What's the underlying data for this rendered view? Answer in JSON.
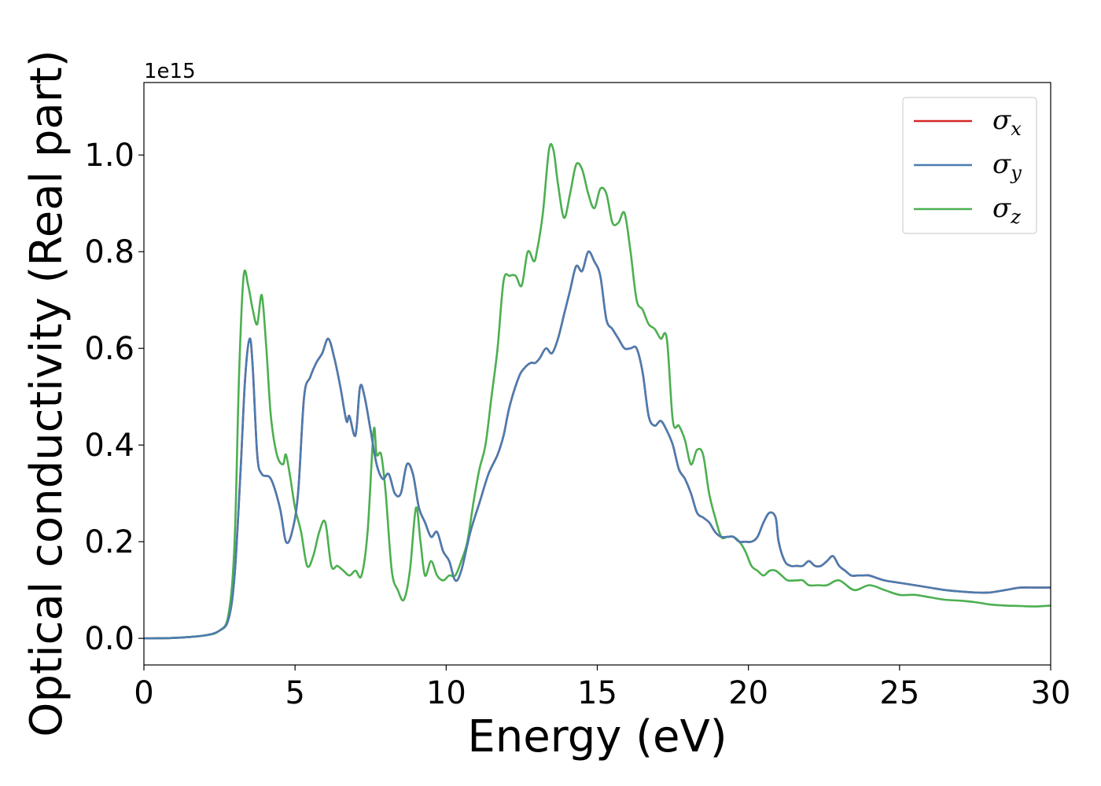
{
  "chart_data": {
    "type": "line",
    "xlabel": "Energy (eV)",
    "ylabel": "Optical conductivity (Real part)",
    "y_offset_text": "1e15",
    "xlim": [
      0,
      30
    ],
    "ylim": [
      -0.055,
      1.15
    ],
    "x_ticks": [
      "0",
      "5",
      "10",
      "15",
      "20",
      "25",
      "30"
    ],
    "x_tick_values": [
      0,
      5,
      10,
      15,
      20,
      25,
      30
    ],
    "y_ticks": [
      "0.0",
      "0.2",
      "0.4",
      "0.6",
      "0.8",
      "1.0"
    ],
    "y_tick_values": [
      0.0,
      0.2,
      0.4,
      0.6,
      0.8,
      1.0
    ],
    "grid": false,
    "legend_position": "top-right",
    "colors": {
      "sigma_x": "#d62728",
      "sigma_y": "#4a7cb0",
      "sigma_z": "#4caf50"
    },
    "legend": [
      {
        "symbol": "σ",
        "sub": "x",
        "color": "#d62728"
      },
      {
        "symbol": "σ",
        "sub": "y",
        "color": "#4a7cb0"
      },
      {
        "symbol": "σ",
        "sub": "z",
        "color": "#4caf50"
      }
    ],
    "series": [
      {
        "name": "σx",
        "color": "#d62728",
        "x": [
          0,
          1,
          2,
          2.5,
          2.8,
          3.0,
          3.2,
          3.35,
          3.5,
          3.6,
          3.75,
          3.9,
          4.2,
          4.5,
          4.7,
          4.9,
          5.1,
          5.3,
          5.5,
          5.7,
          5.9,
          6.1,
          6.3,
          6.5,
          6.7,
          6.8,
          7.0,
          7.15,
          7.3,
          7.5,
          7.7,
          7.9,
          8.1,
          8.3,
          8.5,
          8.7,
          8.9,
          9.1,
          9.3,
          9.5,
          9.7,
          9.9,
          10.1,
          10.3,
          10.5,
          10.8,
          11.1,
          11.4,
          11.7,
          11.9,
          12.1,
          12.4,
          12.6,
          12.8,
          12.95,
          13.1,
          13.3,
          13.5,
          13.7,
          13.9,
          14.1,
          14.3,
          14.5,
          14.7,
          14.9,
          15.1,
          15.3,
          15.5,
          15.7,
          15.9,
          16.1,
          16.3,
          16.5,
          16.7,
          16.9,
          17.1,
          17.3,
          17.5,
          17.7,
          17.9,
          18.1,
          18.3,
          18.5,
          18.7,
          18.9,
          19.1,
          19.3,
          19.5,
          19.7,
          19.9,
          20.1,
          20.3,
          20.5,
          20.7,
          20.9,
          21.0,
          21.2,
          21.4,
          21.6,
          21.8,
          22.0,
          22.2,
          22.4,
          22.6,
          22.8,
          23.0,
          23.2,
          23.4,
          23.6,
          23.8,
          24.0,
          24.5,
          25.0,
          25.5,
          26.0,
          26.5,
          27.0,
          27.5,
          28.0,
          28.5,
          29.0,
          29.5,
          30.0
        ],
        "values": [
          0.0,
          0.001,
          0.006,
          0.016,
          0.04,
          0.13,
          0.35,
          0.54,
          0.62,
          0.56,
          0.38,
          0.34,
          0.33,
          0.27,
          0.2,
          0.22,
          0.3,
          0.5,
          0.54,
          0.57,
          0.59,
          0.62,
          0.58,
          0.52,
          0.45,
          0.46,
          0.42,
          0.52,
          0.5,
          0.43,
          0.36,
          0.33,
          0.34,
          0.3,
          0.3,
          0.36,
          0.34,
          0.27,
          0.24,
          0.21,
          0.22,
          0.18,
          0.16,
          0.12,
          0.14,
          0.22,
          0.28,
          0.34,
          0.38,
          0.42,
          0.48,
          0.54,
          0.56,
          0.57,
          0.57,
          0.58,
          0.6,
          0.59,
          0.62,
          0.67,
          0.72,
          0.77,
          0.76,
          0.8,
          0.78,
          0.75,
          0.66,
          0.64,
          0.62,
          0.6,
          0.6,
          0.6,
          0.55,
          0.46,
          0.44,
          0.45,
          0.43,
          0.4,
          0.35,
          0.33,
          0.3,
          0.26,
          0.25,
          0.24,
          0.22,
          0.21,
          0.21,
          0.21,
          0.2,
          0.2,
          0.2,
          0.21,
          0.24,
          0.26,
          0.25,
          0.2,
          0.16,
          0.15,
          0.15,
          0.15,
          0.16,
          0.15,
          0.15,
          0.16,
          0.17,
          0.15,
          0.14,
          0.13,
          0.13,
          0.13,
          0.13,
          0.12,
          0.115,
          0.11,
          0.105,
          0.1,
          0.097,
          0.095,
          0.095,
          0.1,
          0.105,
          0.105,
          0.105
        ]
      },
      {
        "name": "σy",
        "color": "#4a7cb0",
        "x": [
          0,
          1,
          2,
          2.5,
          2.8,
          3.0,
          3.2,
          3.35,
          3.5,
          3.6,
          3.75,
          3.9,
          4.2,
          4.5,
          4.7,
          4.9,
          5.1,
          5.3,
          5.5,
          5.7,
          5.9,
          6.1,
          6.3,
          6.5,
          6.7,
          6.8,
          7.0,
          7.15,
          7.3,
          7.5,
          7.7,
          7.9,
          8.1,
          8.3,
          8.5,
          8.7,
          8.9,
          9.1,
          9.3,
          9.5,
          9.7,
          9.9,
          10.1,
          10.3,
          10.5,
          10.8,
          11.1,
          11.4,
          11.7,
          11.9,
          12.1,
          12.4,
          12.6,
          12.8,
          12.95,
          13.1,
          13.3,
          13.5,
          13.7,
          13.9,
          14.1,
          14.3,
          14.5,
          14.7,
          14.9,
          15.1,
          15.3,
          15.5,
          15.7,
          15.9,
          16.1,
          16.3,
          16.5,
          16.7,
          16.9,
          17.1,
          17.3,
          17.5,
          17.7,
          17.9,
          18.1,
          18.3,
          18.5,
          18.7,
          18.9,
          19.1,
          19.3,
          19.5,
          19.7,
          19.9,
          20.1,
          20.3,
          20.5,
          20.7,
          20.9,
          21.0,
          21.2,
          21.4,
          21.6,
          21.8,
          22.0,
          22.2,
          22.4,
          22.6,
          22.8,
          23.0,
          23.2,
          23.4,
          23.6,
          23.8,
          24.0,
          24.5,
          25.0,
          25.5,
          26.0,
          26.5,
          27.0,
          27.5,
          28.0,
          28.5,
          29.0,
          29.5,
          30.0
        ],
        "values": [
          0.0,
          0.001,
          0.006,
          0.016,
          0.04,
          0.13,
          0.35,
          0.54,
          0.62,
          0.56,
          0.38,
          0.34,
          0.33,
          0.27,
          0.2,
          0.22,
          0.3,
          0.5,
          0.54,
          0.57,
          0.59,
          0.62,
          0.58,
          0.52,
          0.45,
          0.46,
          0.42,
          0.52,
          0.5,
          0.43,
          0.36,
          0.33,
          0.34,
          0.3,
          0.3,
          0.36,
          0.34,
          0.27,
          0.24,
          0.21,
          0.22,
          0.18,
          0.16,
          0.12,
          0.14,
          0.22,
          0.28,
          0.34,
          0.38,
          0.42,
          0.48,
          0.54,
          0.56,
          0.57,
          0.57,
          0.58,
          0.6,
          0.59,
          0.62,
          0.67,
          0.72,
          0.77,
          0.76,
          0.8,
          0.78,
          0.75,
          0.66,
          0.64,
          0.62,
          0.6,
          0.6,
          0.6,
          0.55,
          0.46,
          0.44,
          0.45,
          0.43,
          0.4,
          0.35,
          0.33,
          0.3,
          0.26,
          0.25,
          0.24,
          0.22,
          0.21,
          0.21,
          0.21,
          0.2,
          0.2,
          0.2,
          0.21,
          0.24,
          0.26,
          0.25,
          0.2,
          0.16,
          0.15,
          0.15,
          0.15,
          0.16,
          0.15,
          0.15,
          0.16,
          0.17,
          0.15,
          0.14,
          0.13,
          0.13,
          0.13,
          0.13,
          0.12,
          0.115,
          0.11,
          0.105,
          0.1,
          0.097,
          0.095,
          0.095,
          0.1,
          0.105,
          0.105,
          0.105
        ]
      },
      {
        "name": "σz",
        "color": "#4caf50",
        "x": [
          0,
          1,
          2,
          2.5,
          2.8,
          3.0,
          3.15,
          3.3,
          3.45,
          3.6,
          3.75,
          3.9,
          4.05,
          4.2,
          4.4,
          4.6,
          4.7,
          4.85,
          5.0,
          5.2,
          5.4,
          5.6,
          5.8,
          6.0,
          6.2,
          6.4,
          6.6,
          6.8,
          7.0,
          7.2,
          7.4,
          7.6,
          7.7,
          7.85,
          8.0,
          8.2,
          8.4,
          8.6,
          8.8,
          9.0,
          9.15,
          9.3,
          9.5,
          9.7,
          9.9,
          10.1,
          10.3,
          10.5,
          10.7,
          10.9,
          11.1,
          11.3,
          11.5,
          11.7,
          11.9,
          12.1,
          12.3,
          12.5,
          12.7,
          12.9,
          13.0,
          13.2,
          13.4,
          13.55,
          13.7,
          13.9,
          14.1,
          14.3,
          14.5,
          14.7,
          14.9,
          15.1,
          15.3,
          15.5,
          15.7,
          15.9,
          16.1,
          16.3,
          16.5,
          16.7,
          16.9,
          17.1,
          17.3,
          17.5,
          17.7,
          17.9,
          18.1,
          18.3,
          18.5,
          18.7,
          18.9,
          19.1,
          19.3,
          19.5,
          19.7,
          19.9,
          20.1,
          20.3,
          20.5,
          20.7,
          20.9,
          21.1,
          21.3,
          21.6,
          21.8,
          22.0,
          22.3,
          22.6,
          23.0,
          23.5,
          24.0,
          24.5,
          25.0,
          25.5,
          26.0,
          26.5,
          27.0,
          27.5,
          28.0,
          28.5,
          29.0,
          29.5,
          30.0
        ],
        "values": [
          0.0,
          0.001,
          0.006,
          0.016,
          0.05,
          0.2,
          0.55,
          0.75,
          0.73,
          0.68,
          0.65,
          0.71,
          0.6,
          0.46,
          0.38,
          0.36,
          0.38,
          0.33,
          0.27,
          0.22,
          0.15,
          0.17,
          0.22,
          0.24,
          0.15,
          0.15,
          0.14,
          0.13,
          0.14,
          0.13,
          0.22,
          0.43,
          0.38,
          0.38,
          0.3,
          0.14,
          0.1,
          0.08,
          0.14,
          0.27,
          0.2,
          0.13,
          0.16,
          0.13,
          0.12,
          0.13,
          0.13,
          0.16,
          0.2,
          0.28,
          0.35,
          0.4,
          0.5,
          0.6,
          0.74,
          0.75,
          0.75,
          0.73,
          0.8,
          0.78,
          0.8,
          0.88,
          1.01,
          1.01,
          0.94,
          0.87,
          0.92,
          0.98,
          0.97,
          0.92,
          0.89,
          0.93,
          0.92,
          0.86,
          0.86,
          0.88,
          0.8,
          0.7,
          0.68,
          0.65,
          0.64,
          0.62,
          0.62,
          0.45,
          0.44,
          0.41,
          0.36,
          0.39,
          0.38,
          0.3,
          0.25,
          0.21,
          0.21,
          0.21,
          0.2,
          0.18,
          0.15,
          0.14,
          0.13,
          0.14,
          0.14,
          0.13,
          0.12,
          0.12,
          0.12,
          0.11,
          0.11,
          0.11,
          0.12,
          0.1,
          0.11,
          0.1,
          0.09,
          0.09,
          0.085,
          0.08,
          0.078,
          0.075,
          0.07,
          0.068,
          0.067,
          0.066,
          0.068
        ]
      }
    ]
  }
}
